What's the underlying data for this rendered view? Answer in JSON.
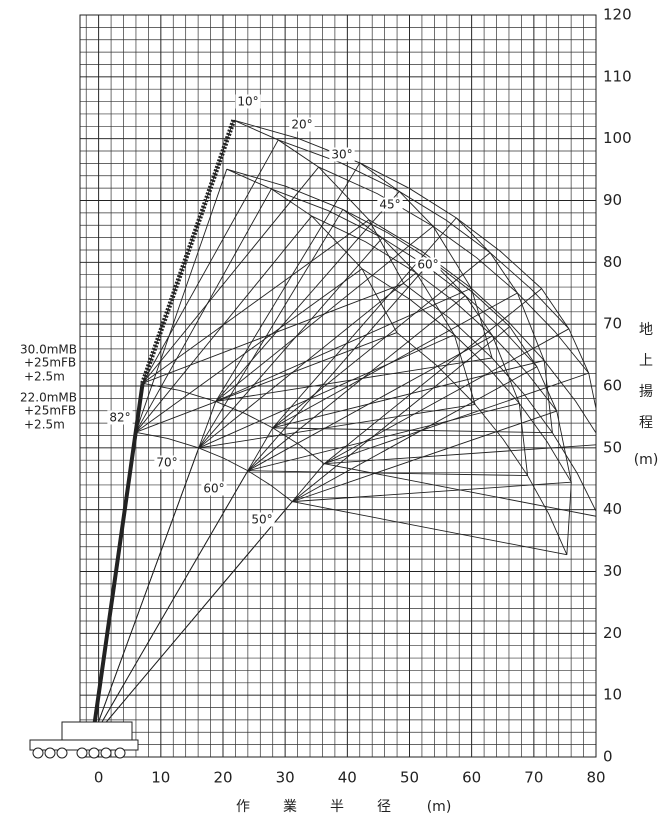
{
  "chart_data": {
    "type": "diagram",
    "xlabel": [
      "作",
      "業",
      "半",
      "径",
      "(m)"
    ],
    "ylabel": [
      "地",
      "上",
      "揚",
      "程",
      "(m)"
    ],
    "xlim": [
      -3,
      80
    ],
    "ylim": [
      0,
      120
    ],
    "xticks": [
      0,
      10,
      20,
      30,
      40,
      50,
      60,
      70,
      80
    ],
    "yticks": [
      0,
      10,
      20,
      30,
      40,
      50,
      60,
      70,
      80,
      90,
      100,
      110,
      120
    ],
    "grid": true,
    "annotations": [
      "10°",
      "20°",
      "30°",
      "45°",
      "60°",
      "82°",
      "70°",
      "60°",
      "50°",
      "30.0mMB",
      "+25mFB",
      "+2.5m",
      "22.0mMB",
      "+25mFB",
      "+2.5m"
    ]
  }
}
